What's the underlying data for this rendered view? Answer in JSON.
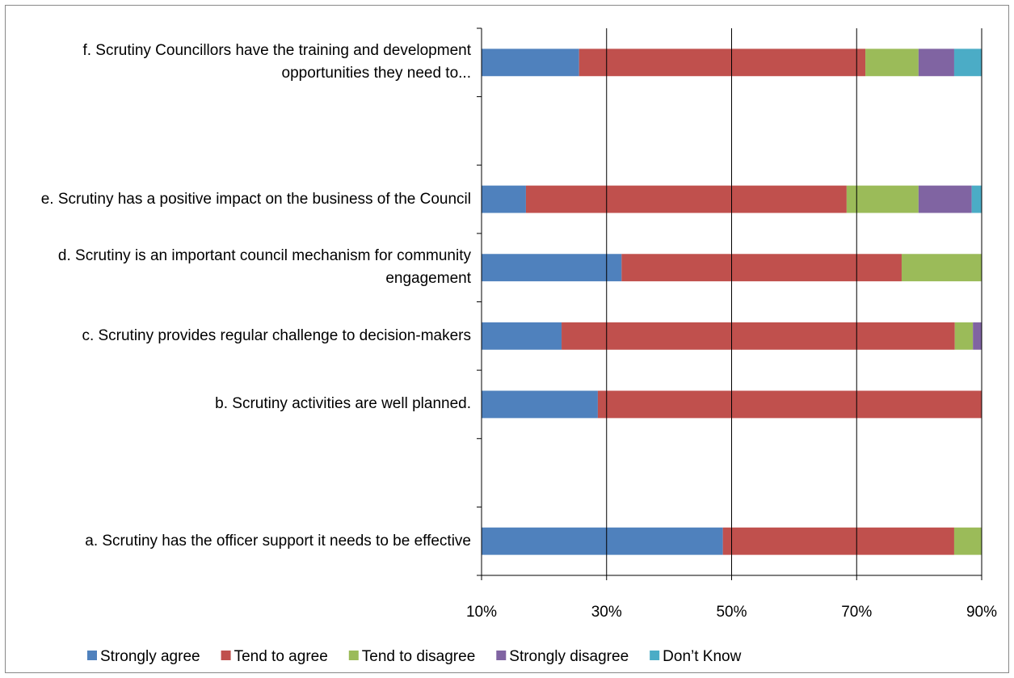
{
  "chart_data": {
    "type": "stacked-bar-horizontal",
    "categories": [
      "a. Scrutiny has the officer support it needs to be effective",
      null,
      "b. Scrutiny activities are well planned.",
      "c. Scrutiny provides regular challenge to decision-makers",
      "d. Scrutiny is an important council mechanism for community engagement",
      "e. Scrutiny has a positive impact on the business of the Council",
      null,
      "f. Scrutiny Councillors have the training and development opportunities they need to..."
    ],
    "series": [
      {
        "name": "Strongly agree",
        "color": "#4f81bd",
        "values": [
          48.6,
          null,
          28.6,
          22.8,
          32.4,
          17.1,
          null,
          25.6
        ]
      },
      {
        "name": "Tend to agree",
        "color": "#c0504d",
        "values": [
          37,
          null,
          71.4,
          62.9,
          44.8,
          51.3,
          null,
          45.8
        ]
      },
      {
        "name": "Tend to disagree",
        "color": "#9bbb59",
        "values": [
          14.4,
          null,
          0,
          2.9,
          22.8,
          11.5,
          null,
          8.5
        ]
      },
      {
        "name": "Strongly disagree",
        "color": "#8064a2",
        "values": [
          0,
          null,
          0,
          11.4,
          0,
          8.5,
          null,
          5.7
        ]
      },
      {
        "name": "Don’t Know",
        "color": "#4bacc6",
        "values": [
          0,
          null,
          0,
          0,
          0,
          11.6,
          null,
          14.4
        ]
      }
    ],
    "xlim": [
      10,
      90
    ],
    "xticks": [
      {
        "value": 10,
        "label": "10%"
      },
      {
        "value": 30,
        "label": "30%"
      },
      {
        "value": 50,
        "label": "50%"
      },
      {
        "value": 70,
        "label": "70%"
      },
      {
        "value": 90,
        "label": "90%"
      }
    ],
    "grid": true,
    "legend": "bottom"
  }
}
